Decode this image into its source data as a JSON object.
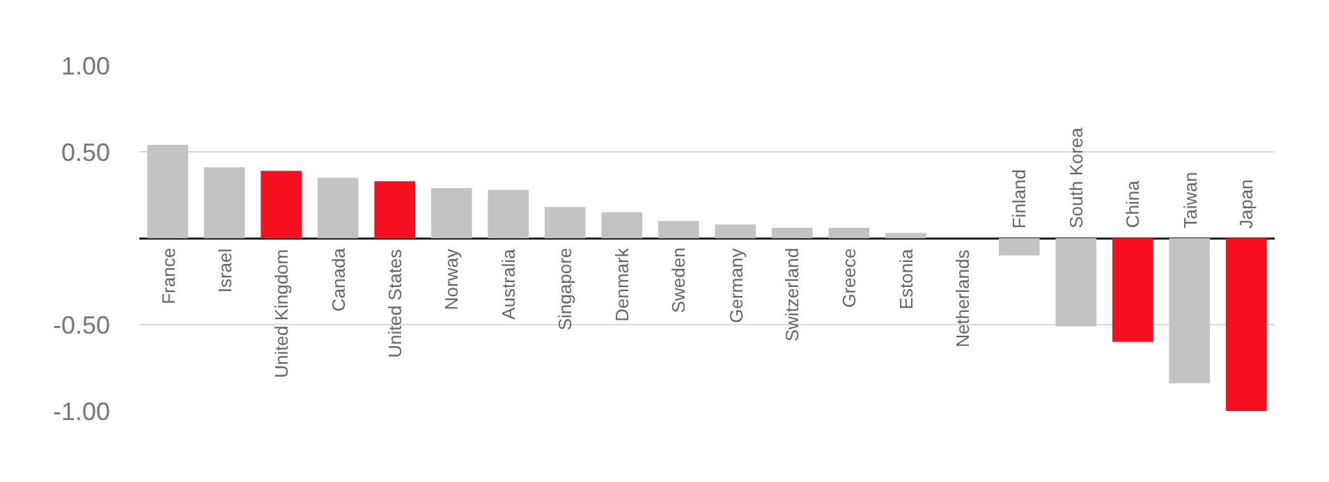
{
  "chart_data": {
    "type": "bar",
    "categories": [
      "France",
      "Israel",
      "United Kingdom",
      "Canada",
      "United States",
      "Norway",
      "Australia",
      "Singapore",
      "Denmark",
      "Sweden",
      "Germany",
      "Switzerland",
      "Greece",
      "Estonia",
      "Netherlands",
      "Finland",
      "South Korea",
      "China",
      "Taiwan",
      "Japan"
    ],
    "values": [
      0.54,
      0.41,
      0.39,
      0.35,
      0.33,
      0.29,
      0.28,
      0.18,
      0.15,
      0.1,
      0.08,
      0.06,
      0.06,
      0.03,
      0,
      -0.1,
      -0.51,
      -0.6,
      -0.84,
      -1.0
    ],
    "colors": [
      "#c3c3c3",
      "#c3c3c3",
      "#f50f1f",
      "#c3c3c3",
      "#f50f1f",
      "#c3c3c3",
      "#c3c3c3",
      "#c3c3c3",
      "#c3c3c3",
      "#c3c3c3",
      "#c3c3c3",
      "#c3c3c3",
      "#c3c3c3",
      "#c3c3c3",
      "#c3c3c3",
      "#c3c3c3",
      "#c3c3c3",
      "#f50f1f",
      "#c3c3c3",
      "#f50f1f"
    ],
    "ylim": [
      -1.0,
      1.0
    ],
    "yticks": [
      {
        "value": -1,
        "label": "-1.00"
      },
      {
        "value": -0.5,
        "label": "-0.50"
      },
      {
        "value": 0,
        "label": null
      },
      {
        "value": 0.5,
        "label": "0.50"
      },
      {
        "value": 1,
        "label": "1.00"
      }
    ],
    "grid": "y"
  }
}
